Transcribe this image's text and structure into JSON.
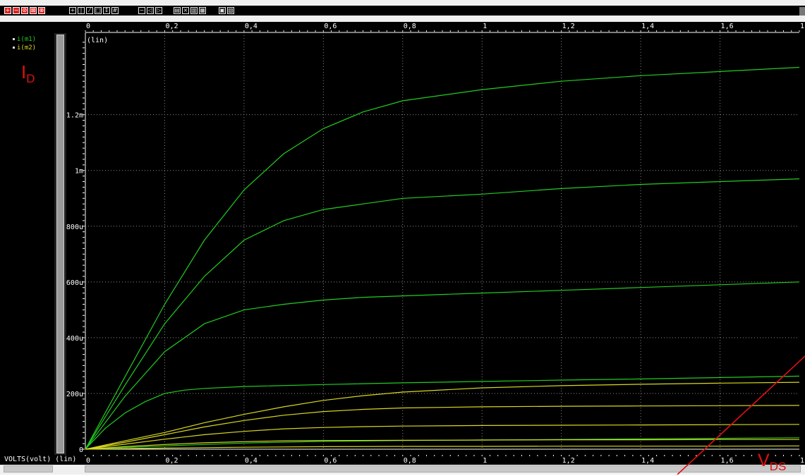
{
  "legend": [
    {
      "label": "i(m1)",
      "color": "#22cc22"
    },
    {
      "label": "i(m2)",
      "color": "#d8d820"
    }
  ],
  "annotations": {
    "id_main": "I",
    "id_sub": "D",
    "vds_main": "V",
    "vds_sub": "DS",
    "color": "#e01010"
  },
  "xaxis_unit_label": "VOLTS(volt) (lin)",
  "chart_data": {
    "type": "line",
    "ylabel": "(lin)",
    "xlim": [
      0,
      1.8
    ],
    "ylim": [
      0,
      0.00148
    ],
    "x_ticks": [
      0,
      0.2,
      0.4,
      0.6,
      0.8,
      1,
      1.2,
      1.4,
      1.6,
      1.8
    ],
    "x_tick_labels": [
      "0",
      "0,2",
      "0,4",
      "0,6",
      "0,8",
      "1",
      "1,2",
      "1,4",
      "1,6",
      "1,8"
    ],
    "y_ticks": [
      0,
      0.0002,
      0.0004,
      0.0006,
      0.0008,
      0.001,
      0.0012
    ],
    "y_tick_labels": [
      "0",
      "200u",
      "400u",
      "600u",
      "800u",
      "1m",
      "1.2m"
    ],
    "grid": true,
    "series_groups": [
      {
        "legend": "i(m1)",
        "color": "#22cc22",
        "curves": [
          {
            "x": [
              0,
              0.1,
              0.2,
              0.3,
              0.4,
              0.5,
              0.6,
              0.7,
              0.8,
              1.0,
              1.2,
              1.4,
              1.6,
              1.8
            ],
            "y": [
              0,
              0.00026,
              0.00052,
              0.00075,
              0.00093,
              0.00106,
              0.00115,
              0.00121,
              0.00125,
              0.00129,
              0.00132,
              0.00134,
              0.001355,
              0.00137
            ]
          },
          {
            "x": [
              0,
              0.1,
              0.2,
              0.3,
              0.4,
              0.5,
              0.6,
              0.7,
              0.8,
              1.0,
              1.2,
              1.4,
              1.6,
              1.8
            ],
            "y": [
              0,
              0.00023,
              0.00045,
              0.00062,
              0.00075,
              0.00082,
              0.00086,
              0.00088,
              0.0009,
              0.000915,
              0.000935,
              0.00095,
              0.00096,
              0.00097
            ]
          },
          {
            "x": [
              0,
              0.1,
              0.2,
              0.3,
              0.4,
              0.5,
              0.6,
              0.7,
              0.8,
              1.0,
              1.2,
              1.4,
              1.6,
              1.8
            ],
            "y": [
              0,
              0.00019,
              0.00035,
              0.00045,
              0.0005,
              0.00052,
              0.000535,
              0.000545,
              0.00055,
              0.00056,
              0.00057,
              0.00058,
              0.00059,
              0.0006
            ]
          },
          {
            "x": [
              0,
              0.05,
              0.1,
              0.15,
              0.2,
              0.25,
              0.3,
              0.4,
              0.6,
              0.8,
              1.0,
              1.2,
              1.4,
              1.6,
              1.8
            ],
            "y": [
              0,
              7.5e-05,
              0.00013,
              0.00017,
              0.0002,
              0.000212,
              0.000218,
              0.000225,
              0.000232,
              0.000238,
              0.000243,
              0.000248,
              0.000252,
              0.000257,
              0.000262
            ]
          },
          {
            "x": [
              0,
              0.2,
              0.4,
              0.6,
              0.8,
              1.0,
              1.2,
              1.4,
              1.6,
              1.8
            ],
            "y": [
              0,
              1.2e-05,
              2.2e-05,
              2.8e-05,
              3.1e-05,
              3.3e-05,
              3.5e-05,
              3.7e-05,
              3.9e-05,
              4.1e-05
            ]
          }
        ]
      },
      {
        "legend": "i(m2)",
        "color": "#d8d820",
        "curves": [
          {
            "x": [
              0,
              0.1,
              0.2,
              0.3,
              0.4,
              0.5,
              0.6,
              0.7,
              0.8,
              1.0,
              1.2,
              1.4,
              1.6,
              1.8
            ],
            "y": [
              0,
              3e-05,
              6e-05,
              9.5e-05,
              0.000125,
              0.000152,
              0.000175,
              0.000192,
              0.000205,
              0.00022,
              0.000228,
              0.000233,
              0.000237,
              0.00024
            ]
          },
          {
            "x": [
              0,
              0.1,
              0.2,
              0.3,
              0.4,
              0.5,
              0.6,
              0.7,
              0.8,
              1.0,
              1.2,
              1.4,
              1.6,
              1.8
            ],
            "y": [
              0,
              2.5e-05,
              5.2e-05,
              8e-05,
              0.000103,
              0.000122,
              0.000135,
              0.000143,
              0.000148,
              0.000152,
              0.000154,
              0.000155,
              0.000156,
              0.000157
            ]
          },
          {
            "x": [
              0,
              0.1,
              0.2,
              0.3,
              0.4,
              0.5,
              0.6,
              0.7,
              0.8,
              1.0,
              1.2,
              1.4,
              1.6,
              1.8
            ],
            "y": [
              0,
              1.8e-05,
              3.6e-05,
              5.2e-05,
              6.4e-05,
              7.3e-05,
              7.8e-05,
              8.1e-05,
              8.3e-05,
              8.5e-05,
              8.6e-05,
              8.7e-05,
              8.8e-05,
              8.9e-05
            ]
          },
          {
            "x": [
              0,
              0.1,
              0.2,
              0.3,
              0.4,
              0.5,
              0.6,
              0.8,
              1.0,
              1.2,
              1.4,
              1.6,
              1.8
            ],
            "y": [
              0,
              9e-06,
              1.7e-05,
              2.3e-05,
              2.7e-05,
              3e-05,
              3.1e-05,
              3.2e-05,
              3.3e-05,
              3.4e-05,
              3.4e-05,
              3.5e-05,
              3.5e-05
            ]
          },
          {
            "x": [
              0,
              0.2,
              0.4,
              0.6,
              0.8,
              1.0,
              1.2,
              1.4,
              1.6,
              1.8
            ],
            "y": [
              0,
              4e-06,
              7e-06,
              9e-06,
              1e-05,
              1e-05,
              1.1e-05,
              1.1e-05,
              1.1e-05,
              1.2e-05
            ]
          }
        ]
      }
    ]
  }
}
